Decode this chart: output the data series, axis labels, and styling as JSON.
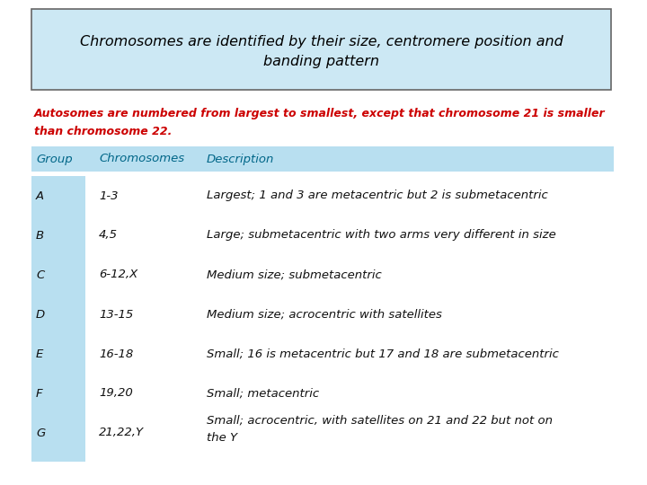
{
  "title_line1": "Chromosomes are identified by their size, centromere position and",
  "title_line2": "banding pattern",
  "subtitle_line1": "Autosomes are numbered from largest to smallest, except that chromosome 21 is smaller",
  "subtitle_line2": "than chromosome 22.",
  "header": [
    "Group",
    "Chromosomes",
    "Description"
  ],
  "rows": [
    [
      "A",
      "1-3",
      "Largest; 1 and 3 are metacentric but 2 is submetacentric"
    ],
    [
      "B",
      "4,5",
      "Large; submetacentric with two arms very different in size"
    ],
    [
      "C",
      "6-12,X",
      "Medium size; submetacentric"
    ],
    [
      "D",
      "13-15",
      "Medium size; acrocentric with satellites"
    ],
    [
      "E",
      "16-18",
      "Small; 16 is metacentric but 17 and 18 are submetacentric"
    ],
    [
      "F",
      "19,20",
      "Small; metacentric"
    ],
    [
      "G",
      "21,22,Y",
      "Small; acrocentric, with satellites on 21 and 22 but not on\nthe Y"
    ]
  ],
  "bg_color": "#ffffff",
  "title_box_bg": "#cce8f4",
  "title_box_border": "#666666",
  "header_bg": "#b8dff0",
  "group_col_bg": "#b8dff0",
  "title_color": "#000000",
  "subtitle_color": "#cc0000",
  "header_color": "#006688",
  "data_color": "#111111",
  "title_fontsize": 11.5,
  "subtitle_fontsize": 9.0,
  "header_fontsize": 9.5,
  "data_fontsize": 9.5
}
